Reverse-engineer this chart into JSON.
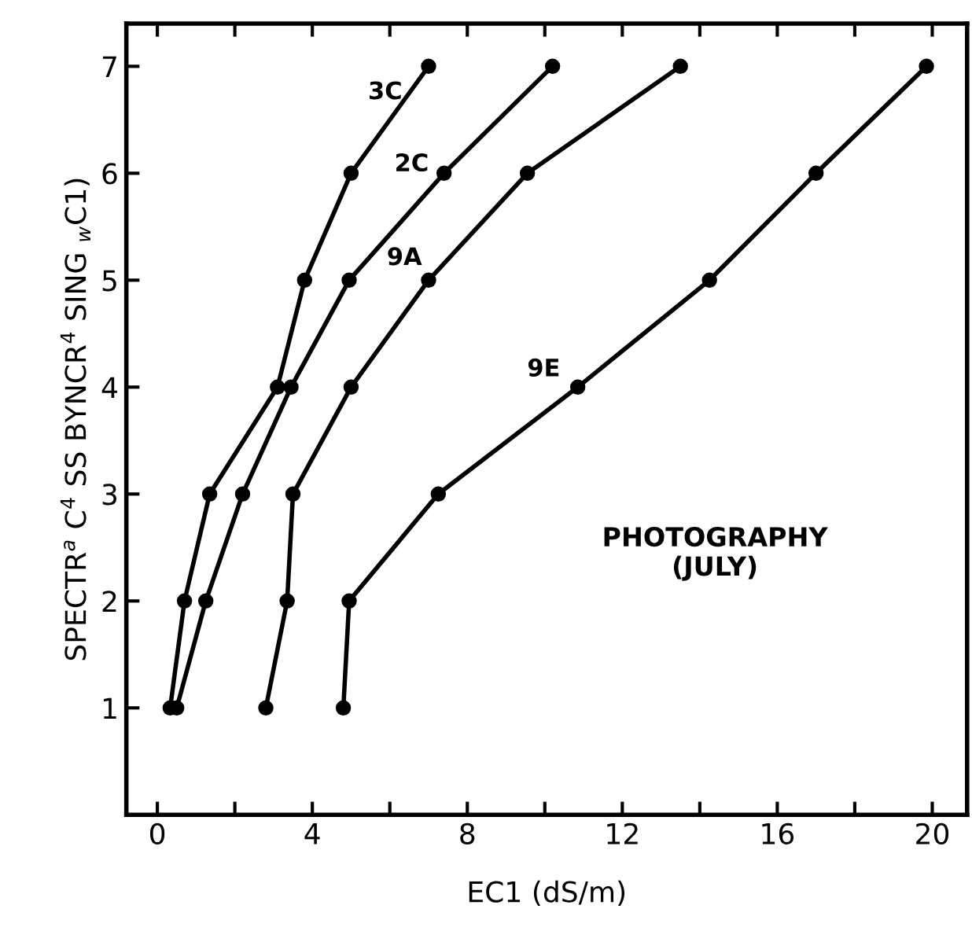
{
  "chart_data": {
    "type": "line",
    "xlabel": "EC1 (dS/m)",
    "ylabel": "SPECTR$^{a}$ C$^{4}$ SS BYNCR$^{4}$ SING $_{w}$C1)",
    "series": [
      {
        "name": "3C",
        "color": "#000000",
        "x": [
          0.33,
          0.7,
          1.35,
          3.1,
          3.8,
          5.0,
          7.0
        ],
        "values": [
          1,
          2,
          3,
          4,
          5,
          6,
          7
        ]
      },
      {
        "name": "2C",
        "color": "#000000",
        "x": [
          0.5,
          1.25,
          2.2,
          3.45,
          4.95,
          7.4,
          10.2
        ],
        "values": [
          1,
          2,
          3,
          4,
          5,
          6,
          7
        ]
      },
      {
        "name": "9A",
        "color": "#000000",
        "x": [
          2.8,
          3.35,
          3.5,
          5.0,
          7.0,
          9.55,
          13.5
        ],
        "values": [
          1,
          2,
          3,
          4,
          5,
          6,
          7
        ]
      },
      {
        "name": "9E",
        "color": "#000000",
        "x": [
          4.8,
          4.95,
          7.25,
          10.85,
          14.25,
          17.0,
          19.85
        ],
        "values": [
          1,
          2,
          3,
          4,
          5,
          6,
          7
        ]
      }
    ],
    "annotations": [
      "PHOTOGRAPHY\n(JULY)"
    ],
    "xlim": [
      -0.8,
      20.9
    ],
    "ylim": [
      0,
      7.4
    ],
    "xticks": [
      0,
      {
        "value": 2,
        "label": null
      },
      4,
      {
        "value": 6,
        "label": null
      },
      8,
      {
        "value": 10,
        "label": null
      },
      12,
      {
        "value": 14,
        "label": null
      },
      16,
      {
        "value": 18,
        "label": null
      },
      20
    ],
    "yticks": [
      1,
      2,
      3,
      4,
      5,
      6,
      7
    ],
    "marker": "circle",
    "line_style": "solid",
    "grid": false,
    "legend": false
  }
}
